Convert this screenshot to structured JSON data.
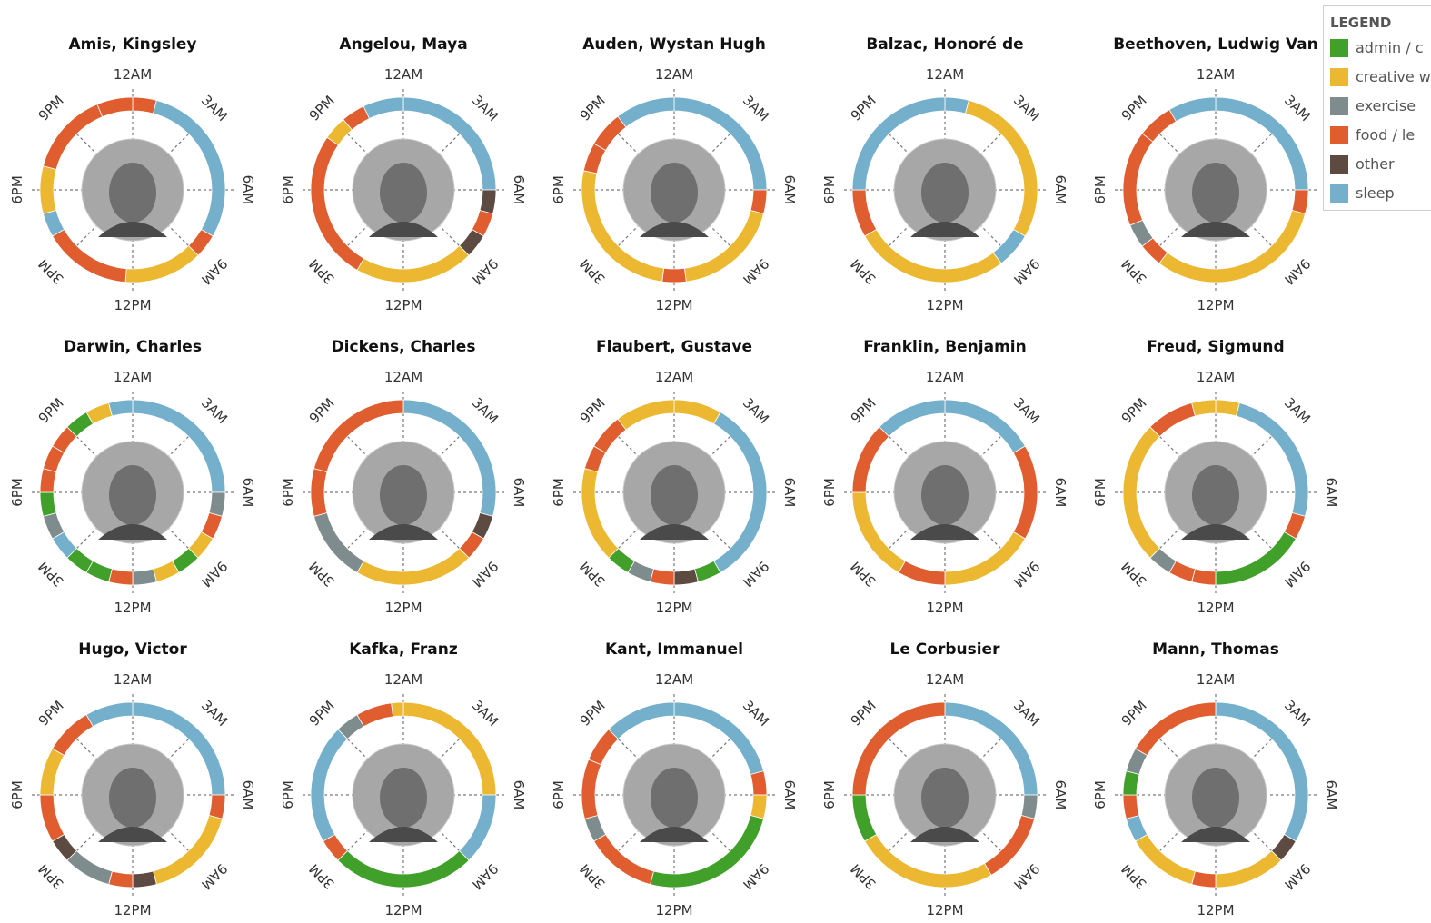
{
  "colors": {
    "admin": "#41a02a",
    "creative": "#ecb831",
    "exercise": "#7f8c8d",
    "food": "#e05d2f",
    "other": "#5d4b42",
    "sleep": "#74b0cb"
  },
  "time_labels": [
    "12AM",
    "3AM",
    "6AM",
    "9AM",
    "12PM",
    "3PM",
    "6PM",
    "9PM"
  ],
  "legend": {
    "title": "LEGEND",
    "items": [
      {
        "key": "admin",
        "label": "admin / c"
      },
      {
        "key": "creative",
        "label": "creative w"
      },
      {
        "key": "exercise",
        "label": "exercise"
      },
      {
        "key": "food",
        "label": "food / le"
      },
      {
        "key": "other",
        "label": "other"
      },
      {
        "key": "sleep",
        "label": "sleep"
      }
    ]
  },
  "chart_data": [
    {
      "type": "radial-timeline",
      "title": "Amis, Kingsley",
      "unit": "hours",
      "segments": [
        {
          "start": 0,
          "end": 1,
          "cat": "food"
        },
        {
          "start": 1,
          "end": 8,
          "cat": "sleep"
        },
        {
          "start": 8,
          "end": 9,
          "cat": "food"
        },
        {
          "start": 9,
          "end": 12.3,
          "cat": "creative"
        },
        {
          "start": 12.3,
          "end": 16,
          "cat": "food"
        },
        {
          "start": 16,
          "end": 17,
          "cat": "sleep"
        },
        {
          "start": 17,
          "end": 19,
          "cat": "creative"
        },
        {
          "start": 19,
          "end": 22.5,
          "cat": "food"
        },
        {
          "start": 22.5,
          "end": 24,
          "cat": "food"
        }
      ]
    },
    {
      "type": "radial-timeline",
      "title": "Angelou, Maya",
      "unit": "hours",
      "segments": [
        {
          "start": 0,
          "end": 6,
          "cat": "sleep"
        },
        {
          "start": 6,
          "end": 7,
          "cat": "other"
        },
        {
          "start": 7,
          "end": 8,
          "cat": "food"
        },
        {
          "start": 8,
          "end": 9,
          "cat": "other"
        },
        {
          "start": 9,
          "end": 14,
          "cat": "creative"
        },
        {
          "start": 14,
          "end": 20.3,
          "cat": "food"
        },
        {
          "start": 20.3,
          "end": 21.3,
          "cat": "creative"
        },
        {
          "start": 21.3,
          "end": 22.3,
          "cat": "food"
        },
        {
          "start": 22.3,
          "end": 24,
          "cat": "sleep"
        }
      ]
    },
    {
      "type": "radial-timeline",
      "title": "Auden, Wystan Hugh",
      "unit": "hours",
      "segments": [
        {
          "start": 0,
          "end": 6,
          "cat": "sleep"
        },
        {
          "start": 6,
          "end": 7,
          "cat": "food"
        },
        {
          "start": 7,
          "end": 11.5,
          "cat": "creative"
        },
        {
          "start": 11.5,
          "end": 12.5,
          "cat": "food"
        },
        {
          "start": 12.5,
          "end": 18.8,
          "cat": "creative"
        },
        {
          "start": 18.8,
          "end": 20,
          "cat": "food"
        },
        {
          "start": 20,
          "end": 21.5,
          "cat": "food"
        },
        {
          "start": 21.5,
          "end": 24,
          "cat": "sleep"
        }
      ]
    },
    {
      "type": "radial-timeline",
      "title": "Balzac, Honoré de",
      "unit": "hours",
      "segments": [
        {
          "start": 0,
          "end": 1,
          "cat": "sleep"
        },
        {
          "start": 1,
          "end": 8,
          "cat": "creative"
        },
        {
          "start": 8,
          "end": 9.5,
          "cat": "sleep"
        },
        {
          "start": 9.5,
          "end": 16,
          "cat": "creative"
        },
        {
          "start": 16,
          "end": 18,
          "cat": "food"
        },
        {
          "start": 18,
          "end": 24,
          "cat": "sleep"
        }
      ]
    },
    {
      "type": "radial-timeline",
      "title": "Beethoven, Ludwig Van",
      "unit": "hours",
      "segments": [
        {
          "start": 0,
          "end": 6,
          "cat": "sleep"
        },
        {
          "start": 6,
          "end": 7,
          "cat": "food"
        },
        {
          "start": 7,
          "end": 14.5,
          "cat": "creative"
        },
        {
          "start": 14.5,
          "end": 15.5,
          "cat": "food"
        },
        {
          "start": 15.5,
          "end": 16.5,
          "cat": "exercise"
        },
        {
          "start": 16.5,
          "end": 20.5,
          "cat": "food"
        },
        {
          "start": 20.5,
          "end": 22,
          "cat": "food"
        },
        {
          "start": 22,
          "end": 24,
          "cat": "sleep"
        }
      ]
    },
    {
      "type": "radial-timeline",
      "title": "Darwin, Charles",
      "unit": "hours",
      "segments": [
        {
          "start": 0,
          "end": 6,
          "cat": "sleep"
        },
        {
          "start": 6,
          "end": 7,
          "cat": "exercise"
        },
        {
          "start": 7,
          "end": 8,
          "cat": "food"
        },
        {
          "start": 8,
          "end": 9,
          "cat": "creative"
        },
        {
          "start": 9,
          "end": 10,
          "cat": "admin"
        },
        {
          "start": 10,
          "end": 11,
          "cat": "creative"
        },
        {
          "start": 11,
          "end": 12,
          "cat": "exercise"
        },
        {
          "start": 12,
          "end": 13,
          "cat": "food"
        },
        {
          "start": 13,
          "end": 14,
          "cat": "admin"
        },
        {
          "start": 14,
          "end": 15,
          "cat": "admin"
        },
        {
          "start": 15,
          "end": 16,
          "cat": "sleep"
        },
        {
          "start": 16,
          "end": 17,
          "cat": "exercise"
        },
        {
          "start": 17,
          "end": 18,
          "cat": "admin"
        },
        {
          "start": 18,
          "end": 19,
          "cat": "food"
        },
        {
          "start": 19,
          "end": 20,
          "cat": "food"
        },
        {
          "start": 20,
          "end": 21,
          "cat": "food"
        },
        {
          "start": 21,
          "end": 22,
          "cat": "admin"
        },
        {
          "start": 22,
          "end": 23,
          "cat": "creative"
        },
        {
          "start": 23,
          "end": 24,
          "cat": "sleep"
        }
      ]
    },
    {
      "type": "radial-timeline",
      "title": "Dickens, Charles",
      "unit": "hours",
      "segments": [
        {
          "start": 0,
          "end": 7,
          "cat": "sleep"
        },
        {
          "start": 7,
          "end": 8,
          "cat": "other"
        },
        {
          "start": 8,
          "end": 9,
          "cat": "food"
        },
        {
          "start": 9,
          "end": 14,
          "cat": "creative"
        },
        {
          "start": 14,
          "end": 17,
          "cat": "exercise"
        },
        {
          "start": 17,
          "end": 19,
          "cat": "food"
        },
        {
          "start": 19,
          "end": 24,
          "cat": "food"
        }
      ]
    },
    {
      "type": "radial-timeline",
      "title": "Flaubert, Gustave",
      "unit": "hours",
      "segments": [
        {
          "start": 0,
          "end": 2,
          "cat": "creative"
        },
        {
          "start": 2,
          "end": 10,
          "cat": "sleep"
        },
        {
          "start": 10,
          "end": 11,
          "cat": "admin"
        },
        {
          "start": 11,
          "end": 12,
          "cat": "other"
        },
        {
          "start": 12,
          "end": 13,
          "cat": "food"
        },
        {
          "start": 13,
          "end": 14,
          "cat": "exercise"
        },
        {
          "start": 14,
          "end": 15,
          "cat": "admin"
        },
        {
          "start": 15,
          "end": 19,
          "cat": "creative"
        },
        {
          "start": 19,
          "end": 20,
          "cat": "food"
        },
        {
          "start": 20,
          "end": 21.5,
          "cat": "food"
        },
        {
          "start": 21.5,
          "end": 24,
          "cat": "creative"
        }
      ]
    },
    {
      "type": "radial-timeline",
      "title": "Franklin, Benjamin",
      "unit": "hours",
      "segments": [
        {
          "start": 0,
          "end": 4,
          "cat": "sleep"
        },
        {
          "start": 4,
          "end": 8,
          "cat": "food"
        },
        {
          "start": 8,
          "end": 12,
          "cat": "creative"
        },
        {
          "start": 12,
          "end": 14,
          "cat": "food"
        },
        {
          "start": 14,
          "end": 18,
          "cat": "creative"
        },
        {
          "start": 18,
          "end": 21,
          "cat": "food"
        },
        {
          "start": 21,
          "end": 24,
          "cat": "sleep"
        }
      ]
    },
    {
      "type": "radial-timeline",
      "title": "Freud, Sigmund",
      "unit": "hours",
      "segments": [
        {
          "start": 0,
          "end": 1,
          "cat": "creative"
        },
        {
          "start": 1,
          "end": 7,
          "cat": "sleep"
        },
        {
          "start": 7,
          "end": 8,
          "cat": "food"
        },
        {
          "start": 8,
          "end": 12,
          "cat": "admin"
        },
        {
          "start": 12,
          "end": 13,
          "cat": "food"
        },
        {
          "start": 13,
          "end": 14,
          "cat": "food"
        },
        {
          "start": 14,
          "end": 15,
          "cat": "exercise"
        },
        {
          "start": 15,
          "end": 21,
          "cat": "creative"
        },
        {
          "start": 21,
          "end": 23,
          "cat": "food"
        },
        {
          "start": 23,
          "end": 24,
          "cat": "creative"
        }
      ]
    },
    {
      "type": "radial-timeline",
      "title": "Hugo, Victor",
      "unit": "hours",
      "segments": [
        {
          "start": 0,
          "end": 6,
          "cat": "sleep"
        },
        {
          "start": 6,
          "end": 7,
          "cat": "food"
        },
        {
          "start": 7,
          "end": 11,
          "cat": "creative"
        },
        {
          "start": 11,
          "end": 12,
          "cat": "other"
        },
        {
          "start": 12,
          "end": 13,
          "cat": "food"
        },
        {
          "start": 13,
          "end": 15,
          "cat": "exercise"
        },
        {
          "start": 15,
          "end": 16,
          "cat": "other"
        },
        {
          "start": 16,
          "end": 18,
          "cat": "food"
        },
        {
          "start": 18,
          "end": 20,
          "cat": "creative"
        },
        {
          "start": 20,
          "end": 22,
          "cat": "food"
        },
        {
          "start": 22,
          "end": 24,
          "cat": "sleep"
        }
      ]
    },
    {
      "type": "radial-timeline",
      "title": "Kafka, Franz",
      "unit": "hours",
      "segments": [
        {
          "start": 0,
          "end": 6,
          "cat": "creative"
        },
        {
          "start": 6,
          "end": 9,
          "cat": "sleep"
        },
        {
          "start": 9,
          "end": 15,
          "cat": "admin"
        },
        {
          "start": 15,
          "end": 16,
          "cat": "food"
        },
        {
          "start": 16,
          "end": 21,
          "cat": "sleep"
        },
        {
          "start": 21,
          "end": 22,
          "cat": "exercise"
        },
        {
          "start": 22,
          "end": 23.5,
          "cat": "food"
        },
        {
          "start": 23.5,
          "end": 24,
          "cat": "creative"
        }
      ]
    },
    {
      "type": "radial-timeline",
      "title": "Kant, Immanuel",
      "unit": "hours",
      "segments": [
        {
          "start": 0,
          "end": 5,
          "cat": "sleep"
        },
        {
          "start": 5,
          "end": 6,
          "cat": "food"
        },
        {
          "start": 6,
          "end": 7,
          "cat": "creative"
        },
        {
          "start": 7,
          "end": 13,
          "cat": "admin"
        },
        {
          "start": 13,
          "end": 16,
          "cat": "food"
        },
        {
          "start": 16,
          "end": 17,
          "cat": "exercise"
        },
        {
          "start": 17,
          "end": 19.5,
          "cat": "food"
        },
        {
          "start": 19.5,
          "end": 21,
          "cat": "food"
        },
        {
          "start": 21,
          "end": 24,
          "cat": "sleep"
        }
      ]
    },
    {
      "type": "radial-timeline",
      "title": "Le Corbusier",
      "unit": "hours",
      "segments": [
        {
          "start": 0,
          "end": 6,
          "cat": "sleep"
        },
        {
          "start": 6,
          "end": 7,
          "cat": "exercise"
        },
        {
          "start": 7,
          "end": 10,
          "cat": "food"
        },
        {
          "start": 10,
          "end": 16,
          "cat": "creative"
        },
        {
          "start": 16,
          "end": 18,
          "cat": "admin"
        },
        {
          "start": 18,
          "end": 24,
          "cat": "food"
        }
      ]
    },
    {
      "type": "radial-timeline",
      "title": "Mann, Thomas",
      "unit": "hours",
      "segments": [
        {
          "start": 0,
          "end": 8,
          "cat": "sleep"
        },
        {
          "start": 8,
          "end": 9,
          "cat": "other"
        },
        {
          "start": 9,
          "end": 12,
          "cat": "creative"
        },
        {
          "start": 12,
          "end": 13,
          "cat": "food"
        },
        {
          "start": 13,
          "end": 16,
          "cat": "creative"
        },
        {
          "start": 16,
          "end": 17,
          "cat": "sleep"
        },
        {
          "start": 17,
          "end": 18,
          "cat": "food"
        },
        {
          "start": 18,
          "end": 19,
          "cat": "admin"
        },
        {
          "start": 19,
          "end": 20,
          "cat": "exercise"
        },
        {
          "start": 20,
          "end": 24,
          "cat": "food"
        }
      ]
    }
  ]
}
